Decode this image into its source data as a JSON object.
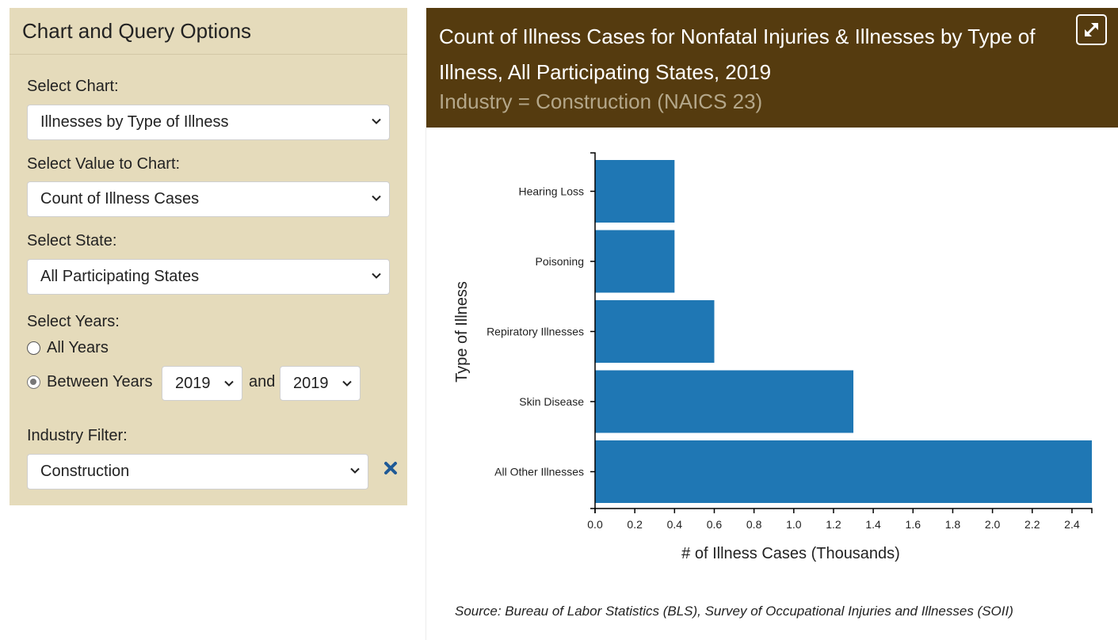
{
  "panel": {
    "title": "Chart and Query Options",
    "chart_label": "Select Chart:",
    "chart_value": "Illnesses by Type of Illness",
    "value_label": "Select Value to Chart:",
    "value_value": "Count of Illness Cases",
    "state_label": "Select State:",
    "state_value": "All Participating States",
    "years_label": "Select Years:",
    "all_years_label": "All Years",
    "between_years_label": "Between Years",
    "year_from": "2019",
    "and_label": "and",
    "year_to": "2019",
    "years_mode": "between",
    "industry_label": "Industry Filter:",
    "industry_value": "Construction"
  },
  "chart": {
    "title": "Count of Illness Cases for Nonfatal Injuries & Illnesses by Type of Illness, All Participating States, 2019",
    "subtitle": "Industry = Construction (NAICS 23)",
    "source": "Source: Bureau of Labor Statistics (BLS), Survey of Occupational Injuries and Illnesses (SOII)",
    "bar_color": "#1f77b4"
  },
  "colors": {
    "panel_bg": "#e5dbbb",
    "header_bg": "#553b0f",
    "clear_icon": "#1f5a96"
  },
  "icons": {
    "expand": "expand-arrows-icon",
    "clear": "close-x-icon",
    "dropdown": "chevron-down-icon"
  },
  "chart_data": {
    "type": "bar",
    "orientation": "horizontal",
    "categories": [
      "Hearing Loss",
      "Poisoning",
      "Repiratory Illnesses",
      "Skin Disease",
      "All Other Illnesses"
    ],
    "values": [
      0.4,
      0.4,
      0.6,
      1.3,
      2.5
    ],
    "xlabel": "# of Illness Cases (Thousands)",
    "ylabel": "Type of Illness",
    "xlim": [
      0,
      2.5
    ],
    "xticks": [
      "0.0",
      "0.2",
      "0.4",
      "0.6",
      "0.8",
      "1.0",
      "1.2",
      "1.4",
      "1.6",
      "1.8",
      "2.0",
      "2.2",
      "2.4"
    ],
    "grid": false,
    "legend": "none"
  }
}
